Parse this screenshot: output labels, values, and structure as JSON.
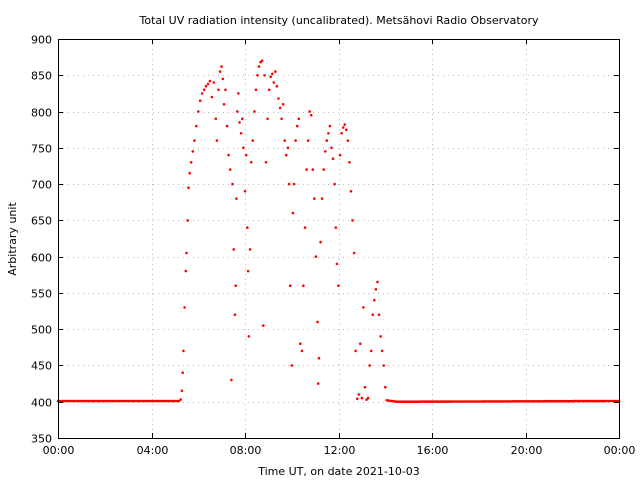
{
  "chart_data": {
    "type": "scatter",
    "title": "Total UV radiation intensity (uncalibrated). Metsähovi Radio Observatory",
    "xlabel": "Time UT, on date 2021-10-03",
    "ylabel": "Arbitrary unit",
    "xlim": [
      "00:00",
      "24:00"
    ],
    "ylim": [
      350,
      900
    ],
    "grid": true,
    "x_ticks": [
      "00:00",
      "04:00",
      "08:00",
      "12:00",
      "16:00",
      "20:00",
      "00:00"
    ],
    "y_ticks": [
      "350",
      "400",
      "450",
      "500",
      "550",
      "600",
      "650",
      "700",
      "750",
      "800",
      "850",
      "900"
    ],
    "series": [
      {
        "color": "#ff0000",
        "points": [
          [
            "00:00",
            401
          ],
          [
            "05:10",
            401
          ],
          [
            "05:15",
            403
          ],
          [
            "05:18",
            415
          ],
          [
            "05:20",
            440
          ],
          [
            "05:22",
            470
          ],
          [
            "05:25",
            530
          ],
          [
            "05:28",
            580
          ],
          [
            "05:30",
            605
          ],
          [
            "05:33",
            650
          ],
          [
            "05:35",
            695
          ],
          [
            "05:38",
            715
          ],
          [
            "05:42",
            730
          ],
          [
            "05:46",
            745
          ],
          [
            "05:50",
            760
          ],
          [
            "05:55",
            780
          ],
          [
            "06:00",
            800
          ],
          [
            "06:05",
            815
          ],
          [
            "06:10",
            825
          ],
          [
            "06:15",
            830
          ],
          [
            "06:20",
            835
          ],
          [
            "06:25",
            838
          ],
          [
            "06:30",
            842
          ],
          [
            "06:35",
            820
          ],
          [
            "06:40",
            840
          ],
          [
            "06:45",
            790
          ],
          [
            "06:48",
            760
          ],
          [
            "06:52",
            830
          ],
          [
            "06:56",
            855
          ],
          [
            "07:00",
            862
          ],
          [
            "07:03",
            845
          ],
          [
            "07:06",
            810
          ],
          [
            "07:10",
            830
          ],
          [
            "07:14",
            780
          ],
          [
            "07:18",
            740
          ],
          [
            "07:22",
            720
          ],
          [
            "07:25",
            430
          ],
          [
            "07:28",
            700
          ],
          [
            "07:31",
            610
          ],
          [
            "07:34",
            520
          ],
          [
            "07:36",
            560
          ],
          [
            "07:38",
            680
          ],
          [
            "07:40",
            800
          ],
          [
            "07:43",
            825
          ],
          [
            "07:46",
            785
          ],
          [
            "07:50",
            770
          ],
          [
            "07:53",
            790
          ],
          [
            "07:56",
            750
          ],
          [
            "08:00",
            690
          ],
          [
            "08:03",
            740
          ],
          [
            "08:06",
            640
          ],
          [
            "08:08",
            580
          ],
          [
            "08:10",
            490
          ],
          [
            "08:13",
            610
          ],
          [
            "08:16",
            730
          ],
          [
            "08:20",
            760
          ],
          [
            "08:24",
            800
          ],
          [
            "08:28",
            830
          ],
          [
            "08:32",
            850
          ],
          [
            "08:36",
            862
          ],
          [
            "08:40",
            868
          ],
          [
            "08:44",
            870
          ],
          [
            "08:47",
            505
          ],
          [
            "08:50",
            850
          ],
          [
            "08:54",
            730
          ],
          [
            "08:58",
            790
          ],
          [
            "09:02",
            830
          ],
          [
            "09:06",
            848
          ],
          [
            "09:10",
            852
          ],
          [
            "09:14",
            840
          ],
          [
            "09:18",
            855
          ],
          [
            "09:22",
            835
          ],
          [
            "09:26",
            818
          ],
          [
            "09:30",
            805
          ],
          [
            "09:34",
            790
          ],
          [
            "09:38",
            810
          ],
          [
            "09:42",
            760
          ],
          [
            "09:46",
            740
          ],
          [
            "09:50",
            750
          ],
          [
            "09:53",
            700
          ],
          [
            "09:56",
            560
          ],
          [
            "10:00",
            450
          ],
          [
            "10:03",
            660
          ],
          [
            "10:06",
            700
          ],
          [
            "10:10",
            760
          ],
          [
            "10:14",
            780
          ],
          [
            "10:18",
            790
          ],
          [
            "10:22",
            480
          ],
          [
            "10:26",
            470
          ],
          [
            "10:30",
            560
          ],
          [
            "10:34",
            640
          ],
          [
            "10:38",
            720
          ],
          [
            "10:42",
            760
          ],
          [
            "10:46",
            800
          ],
          [
            "10:50",
            795
          ],
          [
            "10:54",
            720
          ],
          [
            "10:58",
            680
          ],
          [
            "11:02",
            600
          ],
          [
            "11:06",
            510
          ],
          [
            "11:08",
            425
          ],
          [
            "11:10",
            460
          ],
          [
            "11:14",
            620
          ],
          [
            "11:18",
            680
          ],
          [
            "11:22",
            720
          ],
          [
            "11:26",
            745
          ],
          [
            "11:30",
            760
          ],
          [
            "11:34",
            770
          ],
          [
            "11:38",
            780
          ],
          [
            "11:42",
            750
          ],
          [
            "11:46",
            735
          ],
          [
            "11:50",
            700
          ],
          [
            "11:53",
            640
          ],
          [
            "11:56",
            590
          ],
          [
            "12:00",
            560
          ],
          [
            "12:04",
            740
          ],
          [
            "12:08",
            770
          ],
          [
            "12:12",
            778
          ],
          [
            "12:16",
            782
          ],
          [
            "12:20",
            775
          ],
          [
            "12:24",
            760
          ],
          [
            "12:28",
            730
          ],
          [
            "12:32",
            690
          ],
          [
            "12:36",
            650
          ],
          [
            "12:40",
            605
          ],
          [
            "12:44",
            470
          ],
          [
            "12:48",
            404
          ],
          [
            "12:52",
            410
          ],
          [
            "12:56",
            480
          ],
          [
            "13:00",
            405
          ],
          [
            "13:04",
            530
          ],
          [
            "13:08",
            420
          ],
          [
            "13:12",
            403
          ],
          [
            "13:16",
            405
          ],
          [
            "13:20",
            450
          ],
          [
            "13:24",
            470
          ],
          [
            "13:28",
            520
          ],
          [
            "13:32",
            540
          ],
          [
            "13:36",
            555
          ],
          [
            "13:40",
            565
          ],
          [
            "13:44",
            520
          ],
          [
            "13:48",
            490
          ],
          [
            "13:52",
            470
          ],
          [
            "13:56",
            450
          ],
          [
            "14:00",
            420
          ],
          [
            "14:04",
            402
          ],
          [
            "14:30",
            400
          ],
          [
            "24:00",
            401
          ]
        ]
      }
    ]
  }
}
